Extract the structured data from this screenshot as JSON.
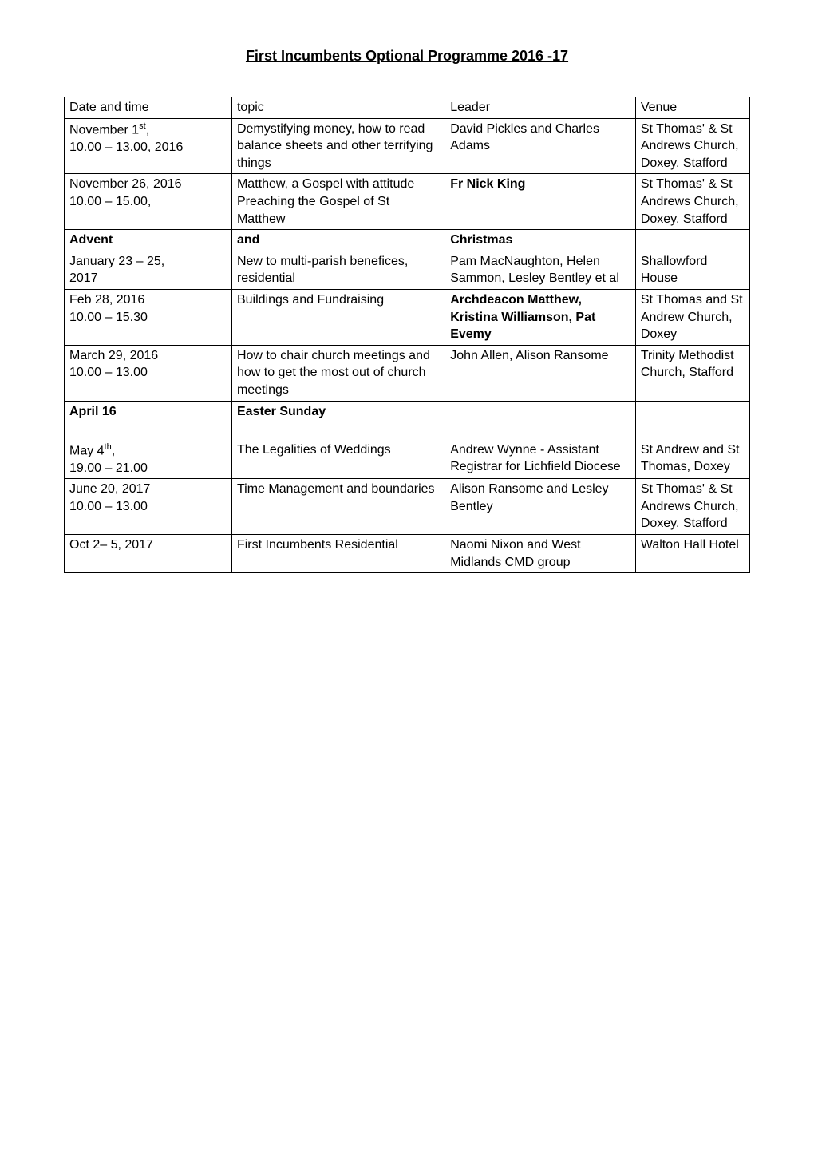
{
  "title": "First Incumbents Optional Programme 2016 -17",
  "headers": {
    "date": "Date and time",
    "topic": "topic",
    "leader": "Leader",
    "venue": "Venue"
  },
  "rows": [
    {
      "date_line1": "November 1",
      "date_sup": "st",
      "date_after": ",",
      "date_line2": "10.00 – 13.00, 2016",
      "topic": "Demystifying money, how to read balance sheets and other terrifying things",
      "leader": "David Pickles and Charles Adams",
      "venue": "St Thomas' & St Andrews Church, Doxey, Stafford",
      "leader_bold": false
    },
    {
      "date_line1": "November 26, 2016",
      "date_line2": "10.00 – 15.00,",
      "topic": "Matthew, a Gospel with attitude\nPreaching the Gospel of St Matthew",
      "leader": "Fr Nick King",
      "venue": "St Thomas' & St Andrews Church, Doxey, Stafford",
      "leader_bold": true
    },
    {
      "section": true,
      "date": "Advent",
      "topic": "and",
      "leader": "Christmas",
      "venue": ""
    },
    {
      "date_line1": "January 23 – 25,",
      "date_line2": "2017",
      "topic": "New to multi-parish benefices, residential",
      "leader": "Pam MacNaughton, Helen Sammon, Lesley Bentley et al",
      "venue": "Shallowford House",
      "leader_bold": false
    },
    {
      "date_line1": "Feb 28, 2016",
      "date_line2": "10.00 – 15.30",
      "topic": "Buildings and Fundraising",
      "leader": "Archdeacon Matthew, Kristina Williamson, Pat Evemy",
      "venue": "St Thomas and St Andrew Church, Doxey",
      "leader_bold": true
    },
    {
      "date_line1": "March 29, 2016",
      "date_line2": "10.00 – 13.00",
      "topic": "How to chair church meetings and how to get the most out of church meetings",
      "leader": "John Allen, Alison Ransome",
      "venue": "Trinity Methodist Church, Stafford",
      "leader_bold": false
    },
    {
      "section": true,
      "date": "April 16",
      "topic": "Easter Sunday",
      "leader": "",
      "venue": ""
    },
    {
      "date_pretext": "",
      "date_line1": "May 4",
      "date_sup": "th",
      "date_after": ",",
      "date_line2": "19.00 – 21.00",
      "topic_pretext": " ",
      "topic": "The Legalities of Weddings",
      "leader_pretext": " ",
      "leader": "Andrew Wynne - Assistant Registrar for Lichfield Diocese",
      "venue_pretext": " ",
      "venue": "St Andrew and St Thomas, Doxey",
      "leader_bold": false,
      "blank_top": true
    },
    {
      "date_line1": "June 20, 2017",
      "date_line2": "10.00 – 13.00",
      "topic": "Time Management and boundaries",
      "leader": "Alison Ransome and Lesley Bentley",
      "venue": "St Thomas' & St Andrews Church, Doxey, Stafford",
      "leader_bold": false
    },
    {
      "date_line1": "Oct 2– 5, 2017",
      "date_line2": "",
      "topic": "First Incumbents Residential",
      "leader": "Naomi Nixon and West Midlands CMD group",
      "venue": "Walton Hall Hotel",
      "leader_bold": false
    }
  ]
}
